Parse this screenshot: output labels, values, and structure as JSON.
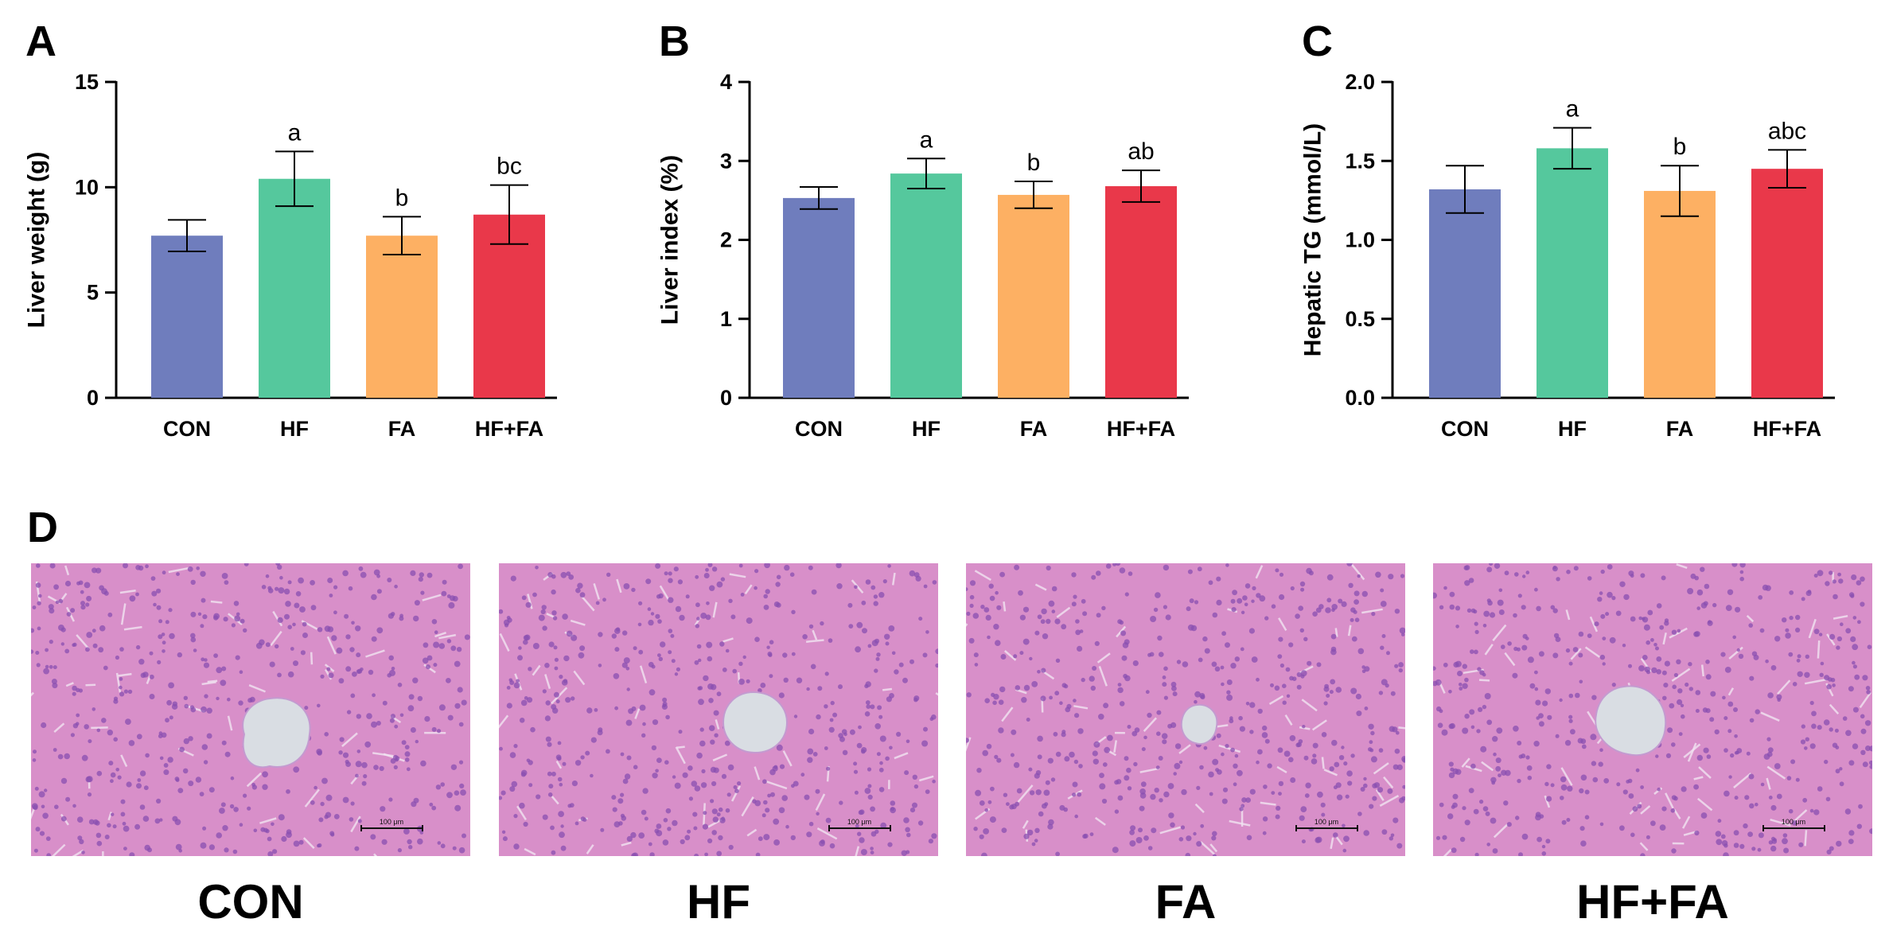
{
  "colors": {
    "CON": "#6f7dbd",
    "HF": "#55c89d",
    "FA": "#fdb063",
    "HF+FA": "#e9384a",
    "tissue": "#d88fc9",
    "nuclei": "#8a4fb0"
  },
  "chart_data": [
    {
      "panel": "A",
      "type": "bar",
      "ylabel": "Liver weight (g)",
      "categories": [
        "CON",
        "HF",
        "FA",
        "HF+FA"
      ],
      "values": [
        7.7,
        10.4,
        7.7,
        8.7
      ],
      "errors": [
        0.75,
        1.3,
        0.9,
        1.4
      ],
      "significance": [
        "",
        "a",
        "b",
        "bc"
      ],
      "ylim": [
        0,
        15
      ],
      "yticks": [
        0,
        5,
        10,
        15
      ],
      "ytick_labels": [
        "0",
        "5",
        "10",
        "15"
      ]
    },
    {
      "panel": "B",
      "type": "bar",
      "ylabel": "Liver index (%)",
      "categories": [
        "CON",
        "HF",
        "FA",
        "HF+FA"
      ],
      "values": [
        2.53,
        2.84,
        2.57,
        2.68
      ],
      "errors": [
        0.14,
        0.19,
        0.17,
        0.2
      ],
      "significance": [
        "",
        "a",
        "b",
        "ab"
      ],
      "ylim": [
        0,
        4
      ],
      "yticks": [
        0,
        1,
        2,
        3,
        4
      ],
      "ytick_labels": [
        "0",
        "1",
        "2",
        "3",
        "4"
      ]
    },
    {
      "panel": "C",
      "type": "bar",
      "ylabel": "Hepatic TG (mmol/L)",
      "categories": [
        "CON",
        "HF",
        "FA",
        "HF+FA"
      ],
      "values": [
        1.32,
        1.58,
        1.31,
        1.45
      ],
      "errors": [
        0.15,
        0.13,
        0.16,
        0.12
      ],
      "significance": [
        "",
        "a",
        "b",
        "abc"
      ],
      "ylim": [
        0,
        2
      ],
      "yticks": [
        0,
        0.5,
        1,
        1.5,
        2
      ],
      "ytick_labels": [
        "0.0",
        "0.5",
        "1.0",
        "1.5",
        "2.0"
      ]
    }
  ],
  "panel_d": {
    "letter": "D",
    "images": [
      {
        "label": "CON",
        "scale_bar": "100 μm",
        "vein": "irregular"
      },
      {
        "label": "HF",
        "scale_bar": "100 μm",
        "vein": "round"
      },
      {
        "label": "FA",
        "scale_bar": "100 μm",
        "vein": "small"
      },
      {
        "label": "HF+FA",
        "scale_bar": "100 μm",
        "vein": "large"
      }
    ]
  }
}
